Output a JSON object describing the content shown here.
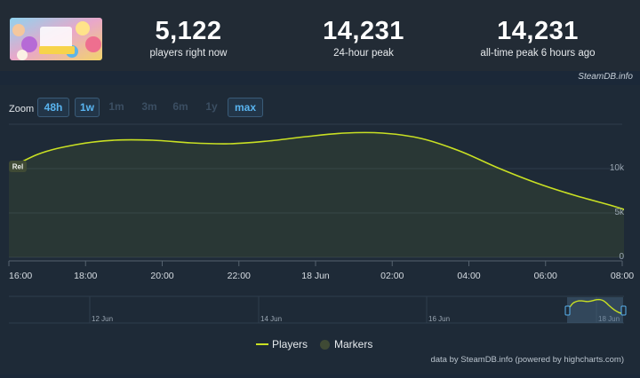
{
  "stats": {
    "current": {
      "value": "5,122",
      "label": "players right now"
    },
    "peak_24h": {
      "value": "14,231",
      "label": "24-hour peak"
    },
    "peak_all": {
      "value": "14,231",
      "label": "all-time peak 6 hours ago"
    }
  },
  "game_art_label": "Date Everything!",
  "credit_top": "SteamDB.info",
  "zoom": {
    "label": "Zoom",
    "buttons": [
      {
        "label": "48h",
        "state": "active"
      },
      {
        "label": "1w",
        "state": "active"
      },
      {
        "label": "1m",
        "state": "disabled"
      },
      {
        "label": "3m",
        "state": "disabled"
      },
      {
        "label": "6m",
        "state": "disabled"
      },
      {
        "label": "1y",
        "state": "disabled"
      },
      {
        "label": "max",
        "state": "active"
      }
    ]
  },
  "marker_label": "Rel",
  "legend": {
    "players": "Players",
    "markers": "Markers"
  },
  "credit_bottom": "data by SteamDB.info (powered by highcharts.com)",
  "navigator_labels": [
    "12 Jun",
    "14 Jun",
    "16 Jun",
    "18 Jun"
  ],
  "colors": {
    "line": "#c9e023",
    "accent": "#59b4f0",
    "background": "#1b2838",
    "panel": "#1e2a37"
  },
  "chart_data": {
    "type": "area",
    "series": [
      {
        "name": "Players",
        "x": [
          "15:40",
          "16:45",
          "17:45",
          "18:45",
          "19:45",
          "20:45",
          "21:45",
          "22:45",
          "23:45",
          "00:45",
          "01:45",
          "02:45",
          "03:45",
          "04:45",
          "05:45",
          "06:45",
          "07:45",
          "08:15"
        ],
        "values": [
          9200,
          11600,
          12700,
          13200,
          13200,
          12900,
          12800,
          13100,
          13600,
          14000,
          14000,
          13400,
          12000,
          10100,
          8400,
          7000,
          5800,
          5100
        ]
      }
    ],
    "x_ticks": [
      "16:00",
      "18:00",
      "20:00",
      "22:00",
      "18 Jun",
      "02:00",
      "04:00",
      "06:00",
      "08:00"
    ],
    "y_ticks": [
      "0",
      "5k",
      "10k"
    ],
    "ylim": [
      0,
      15000
    ],
    "grid": true,
    "legend_position": "bottom"
  }
}
